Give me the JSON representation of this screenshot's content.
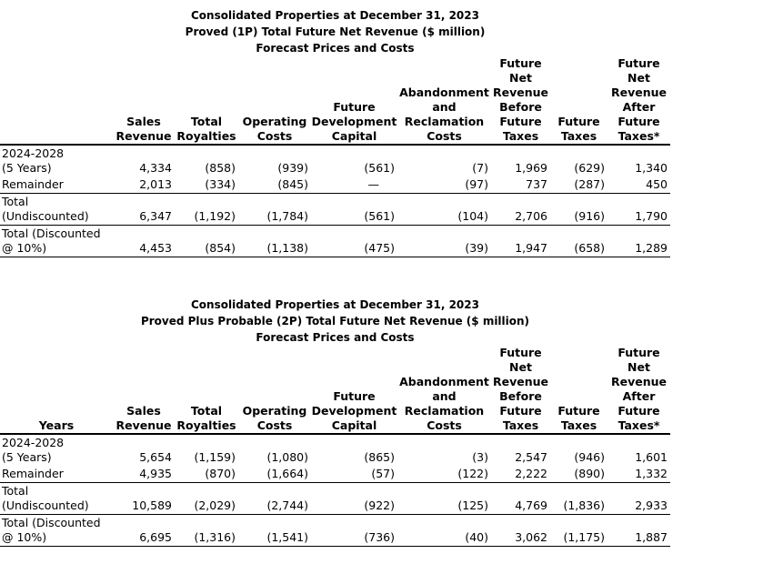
{
  "colors": {
    "text": "#000000",
    "background": "#ffffff",
    "rule": "#000000"
  },
  "report": {
    "tables": [
      {
        "title_lines": [
          "Consolidated Properties at December 31, 2023",
          "Proved (1P) Total Future Net Revenue ($ million)",
          "Forecast Prices and Costs"
        ],
        "row_header": "",
        "column_headers": [
          "Sales\nRevenue",
          "Total\nRoyalties",
          "Operating\nCosts",
          "Future\nDevelopment\nCapital",
          "Abandonment\nand\nReclamation\nCosts",
          "Future\nNet\nRevenue\nBefore\nFuture\nTaxes",
          "Future\nTaxes",
          "Future\nNet\nRevenue\nAfter\nFuture\nTaxes*"
        ],
        "rows": [
          {
            "label": "2024-2028\n(5 Years)",
            "values": [
              "4,334",
              "(858)",
              "(939)",
              "(561)",
              "(7)",
              "1,969",
              "(629)",
              "1,340"
            ]
          },
          {
            "label": "Remainder",
            "values": [
              "2,013",
              "(334)",
              "(845)",
              "—",
              "(97)",
              "737",
              "(287)",
              "450"
            ]
          },
          {
            "label": "Total\n(Undiscounted)",
            "values": [
              "6,347",
              "(1,192)",
              "(1,784)",
              "(561)",
              "(104)",
              "2,706",
              "(916)",
              "1,790"
            ]
          },
          {
            "label": "Total (Discounted\n@ 10%)",
            "values": [
              "4,453",
              "(854)",
              "(1,138)",
              "(475)",
              "(39)",
              "1,947",
              "(658)",
              "1,289"
            ]
          }
        ]
      },
      {
        "title_lines": [
          "Consolidated Properties at December 31, 2023",
          "Proved Plus Probable (2P) Total Future Net Revenue ($ million)",
          "Forecast Prices and Costs"
        ],
        "row_header": "Years",
        "column_headers": [
          "Sales\nRevenue",
          "Total\nRoyalties",
          "Operating\nCosts",
          "Future\nDevelopment\nCapital",
          "Abandonment\nand\nReclamation\nCosts",
          "Future\nNet\nRevenue\nBefore\nFuture\nTaxes",
          "Future\nTaxes",
          "Future\nNet\nRevenue\nAfter\nFuture\nTaxes*"
        ],
        "rows": [
          {
            "label": "2024-2028\n(5 Years)",
            "values": [
              "5,654",
              "(1,159)",
              "(1,080)",
              "(865)",
              "(3)",
              "2,547",
              "(946)",
              "1,601"
            ]
          },
          {
            "label": "Remainder",
            "values": [
              "4,935",
              "(870)",
              "(1,664)",
              "(57)",
              "(122)",
              "2,222",
              "(890)",
              "1,332"
            ]
          },
          {
            "label": "Total\n(Undiscounted)",
            "values": [
              "10,589",
              "(2,029)",
              "(2,744)",
              "(922)",
              "(125)",
              "4,769",
              "(1,836)",
              "2,933"
            ]
          },
          {
            "label": "Total (Discounted\n@ 10%)",
            "values": [
              "6,695",
              "(1,316)",
              "(1,541)",
              "(736)",
              "(40)",
              "3,062",
              "(1,175)",
              "1,887"
            ]
          }
        ]
      }
    ]
  }
}
